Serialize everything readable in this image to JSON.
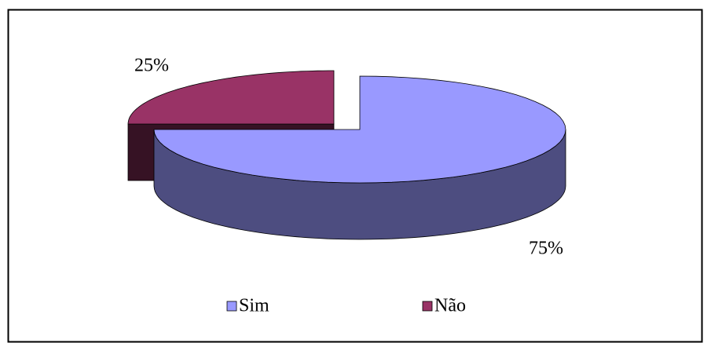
{
  "chart_data": {
    "type": "pie",
    "categories": [
      "Sim",
      "Não"
    ],
    "values": [
      75,
      25
    ],
    "value_labels": [
      "75%",
      "25%"
    ],
    "colors": [
      "#9999ff",
      "#993366"
    ],
    "legend": "bottom"
  }
}
